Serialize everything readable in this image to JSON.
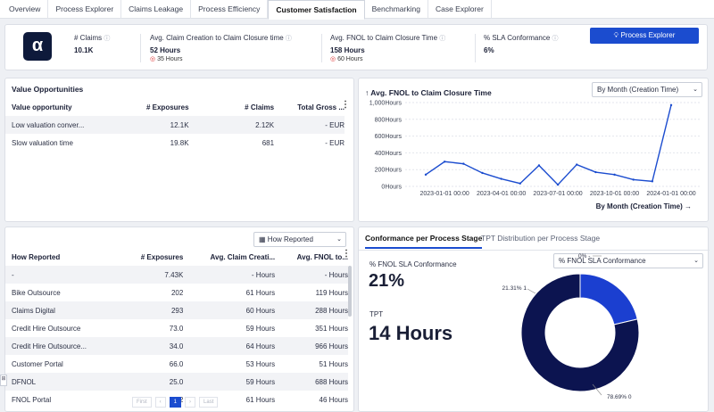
{
  "tabs": [
    "Overview",
    "Process Explorer",
    "Claims Leakage",
    "Process Efficiency",
    "Customer Satisfaction",
    "Benchmarking",
    "Case Explorer"
  ],
  "active_tab": "Customer Satisfaction",
  "kpis": {
    "logo_glyph": "α",
    "claims": {
      "label": "# Claims",
      "value": "10.1K"
    },
    "creation": {
      "label": "Avg. Claim Creation to Claim Closure time",
      "value": "52 Hours",
      "target": "35 Hours"
    },
    "fnol": {
      "label": "Avg. FNOL to Claim Closure Time",
      "value": "158 Hours",
      "target": "60 Hours"
    },
    "sla": {
      "label": "% SLA Conformance",
      "value": "6%"
    },
    "button": "Process Explorer"
  },
  "value_opps": {
    "title": "Value Opportunities",
    "headers": [
      "Value opportunity",
      "# Exposures",
      "# Claims",
      "Total Gross ..."
    ],
    "rows": [
      [
        "Low valuation conver...",
        "12.1K",
        "2.12K",
        "- EUR"
      ],
      [
        "Slow valuation time",
        "19.8K",
        "681",
        "- EUR"
      ]
    ]
  },
  "chart": {
    "title": "Avg. FNOL to Claim Closure Time",
    "dropdown": "By Month (Creation Time)",
    "link": "By Month (Creation Time) →",
    "y_ticks": [
      "1,000Hours",
      "800Hours",
      "600Hours",
      "400Hours",
      "200Hours",
      "0Hours"
    ],
    "x_ticks": [
      "2023-01-01 00:00",
      "2023-04-01 00:00",
      "2023-07-01 00:00",
      "2023-10-01 00:00",
      "2024-01-01 00:00"
    ]
  },
  "chart_data": {
    "type": "line",
    "x": [
      "2022-12",
      "2023-01",
      "2023-02",
      "2023-03",
      "2023-04",
      "2023-05",
      "2023-06",
      "2023-07",
      "2023-08",
      "2023-09",
      "2023-10",
      "2023-11",
      "2023-12",
      "2024-01"
    ],
    "y": [
      140,
      295,
      270,
      160,
      90,
      35,
      250,
      20,
      260,
      170,
      140,
      80,
      60,
      970
    ],
    "ylim": [
      0,
      1000
    ],
    "ylabel": "Hours",
    "color": "#1b4ccf"
  },
  "how_reported": {
    "dropdown": "How Reported",
    "headers": [
      "How Reported",
      "# Exposures",
      "Avg. Claim Creati...",
      "Avg. FNOL to..."
    ],
    "rows": [
      [
        "-",
        "7.43K",
        "- Hours",
        "- Hours"
      ],
      [
        "Bike Outsource",
        "202",
        "61 Hours",
        "119 Hours"
      ],
      [
        "Claims Digital",
        "293",
        "60 Hours",
        "288 Hours"
      ],
      [
        "Credit Hire Outsource",
        "73.0",
        "59 Hours",
        "351 Hours"
      ],
      [
        "Credit Hire Outsource...",
        "34.0",
        "64 Hours",
        "966 Hours"
      ],
      [
        "Customer Portal",
        "66.0",
        "53 Hours",
        "51 Hours"
      ],
      [
        "DFNOL",
        "25.0",
        "59 Hours",
        "688 Hours"
      ],
      [
        "FNOL Portal",
        "302",
        "61 Hours",
        "46 Hours"
      ]
    ],
    "pager": [
      "First",
      "‹",
      "1",
      "›",
      "Last"
    ]
  },
  "conformance": {
    "tabs": [
      "Conformance per Process Stage",
      "TPT Distribution per Process Stage"
    ],
    "sla_label": "% FNOL SLA Conformance",
    "sla_value": "21%",
    "tpt_label": "TPT",
    "tpt_value": "14 Hours",
    "dropdown": "% FNOL SLA Conformance",
    "donut_labels": [
      "0% -",
      "21.31% 1",
      "78.69% 0"
    ],
    "donut": [
      {
        "label": "1",
        "pct": 21.31,
        "color": "#1b3fd0"
      },
      {
        "label": "0",
        "pct": 78.69,
        "color": "#0c1450"
      },
      {
        "label": "-",
        "pct": 0,
        "color": "#6b7bd8"
      }
    ]
  }
}
